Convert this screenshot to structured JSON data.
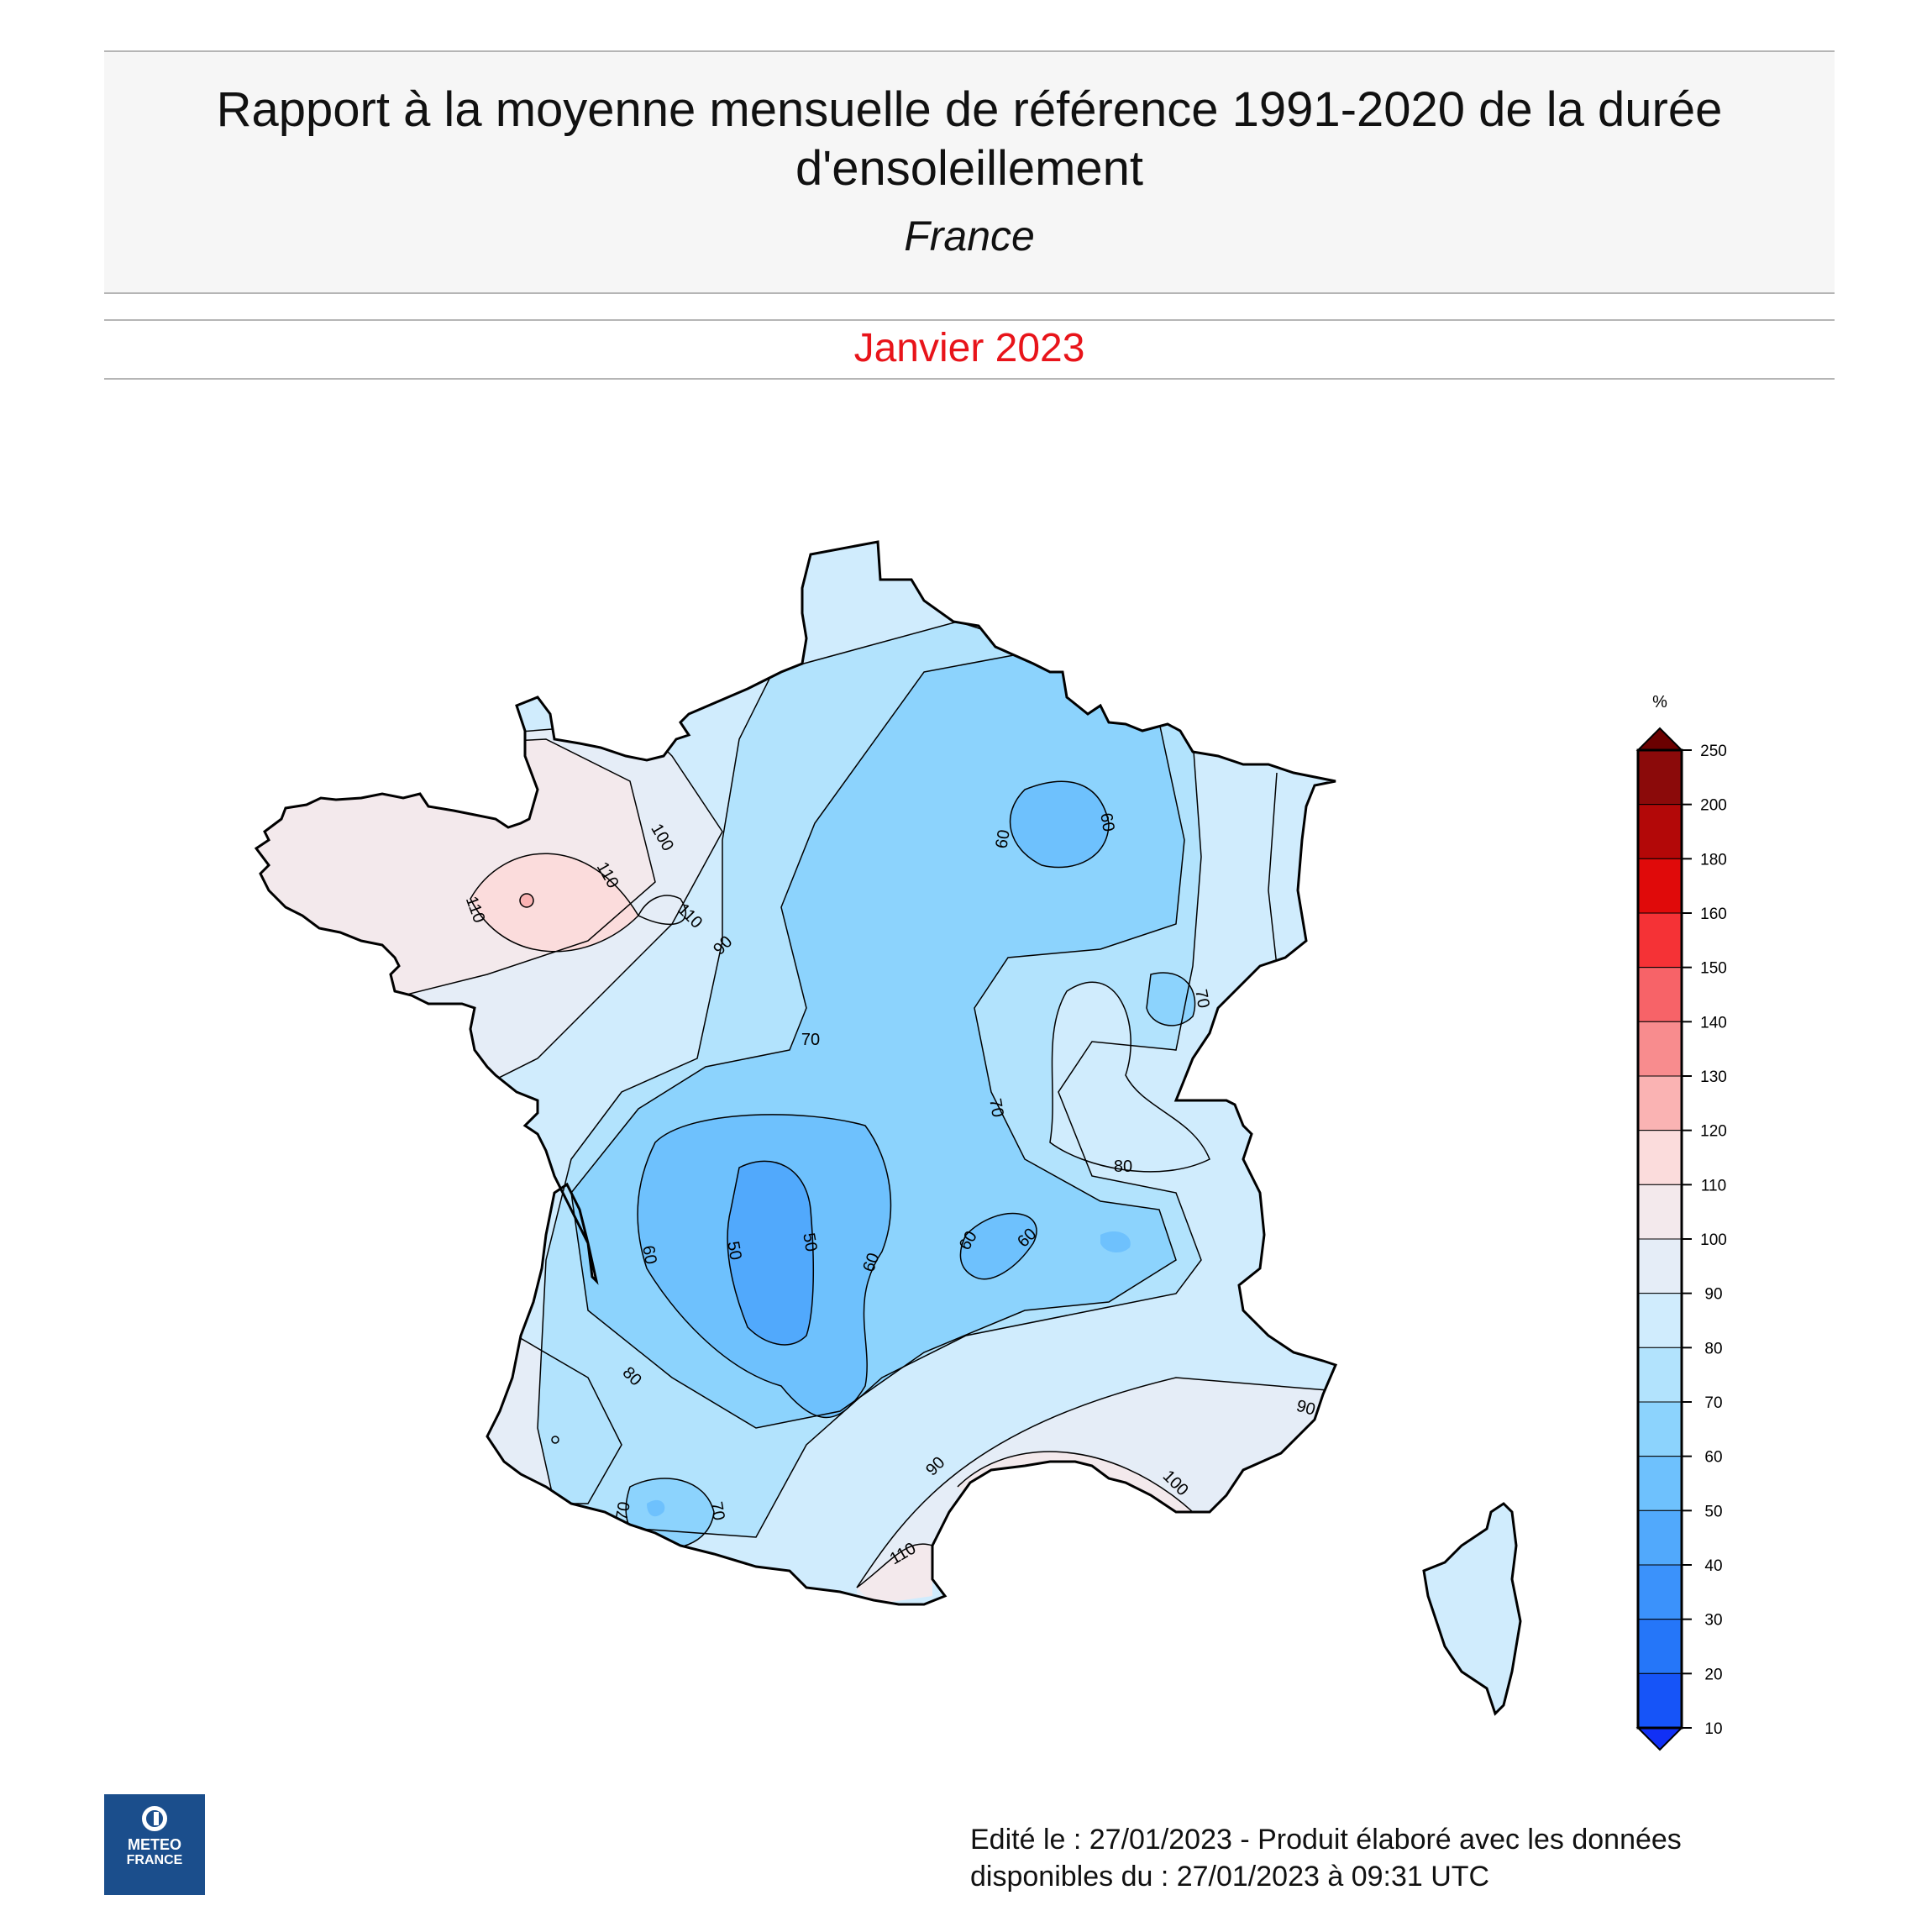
{
  "header": {
    "title": "Rapport à la moyenne mensuelle de référence 1991-2020 de la durée d'ensoleillement",
    "subtitle": "France",
    "period": "Janvier 2023"
  },
  "legend": {
    "unit": "%",
    "ticks": [
      "250",
      "200",
      "180",
      "160",
      "150",
      "140",
      "130",
      "120",
      "110",
      "100",
      "90",
      "80",
      "70",
      "60",
      "50",
      "40",
      "30",
      "20",
      "10"
    ],
    "colors": [
      "#8b0a0a",
      "#b30808",
      "#e00a0a",
      "#f53236",
      "#f76368",
      "#f88c8e",
      "#fab3b3",
      "#fbdcdc",
      "#f3e9ec",
      "#e5edf7",
      "#d0ecfd",
      "#b2e3fd",
      "#8cd3fd",
      "#6ec1fd",
      "#51a9fc",
      "#3b92fb",
      "#2576f9",
      "#1654f8"
    ]
  },
  "contour_labels": [
    "100",
    "110",
    "110",
    "110",
    "90",
    "70",
    "60",
    "60",
    "70",
    "70",
    "80",
    "60",
    "50",
    "50",
    "60",
    "60",
    "60",
    "80",
    "70",
    "70",
    "90",
    "90",
    "100",
    "110"
  ],
  "logo": {
    "line1": "METEO",
    "line2": "FRANCE"
  },
  "footer": {
    "line1": "Edité le : 27/01/2023 - Produit élaboré avec les données",
    "line2": "disponibles du : 27/01/2023 à 09:31 UTC"
  }
}
